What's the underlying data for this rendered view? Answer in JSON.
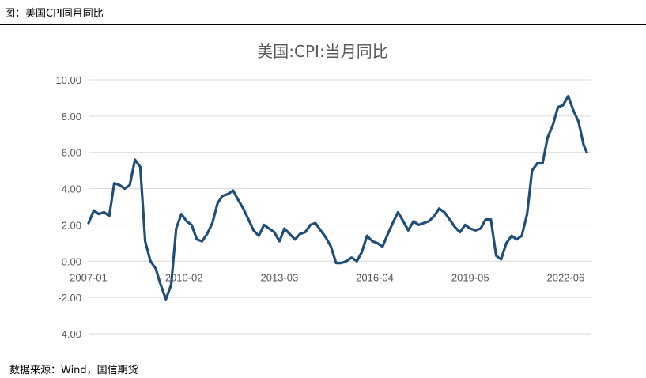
{
  "figure_label": "图：美国CPI同月同比",
  "source": "数据来源：Wind，国信期货",
  "chart_data": {
    "type": "line",
    "title": "美国:CPI:当月同比",
    "xlabel": "",
    "ylabel": "",
    "ylim": [
      -4,
      10
    ],
    "yticks": [
      "10.00",
      "8.00",
      "6.00",
      "4.00",
      "2.00",
      "0.00",
      "-2.00",
      "-4.00"
    ],
    "xticks": [
      "2007-01",
      "2010-02",
      "2013-03",
      "2016-04",
      "2019-05",
      "2022-06"
    ],
    "grid": "horizontal",
    "color": "#1f4e79",
    "series": [
      {
        "points": [
          [
            2007.0,
            2.1
          ],
          [
            2007.17,
            2.8
          ],
          [
            2007.33,
            2.6
          ],
          [
            2007.5,
            2.7
          ],
          [
            2007.67,
            2.5
          ],
          [
            2007.83,
            4.3
          ],
          [
            2008.0,
            4.2
          ],
          [
            2008.17,
            4.0
          ],
          [
            2008.33,
            4.2
          ],
          [
            2008.5,
            5.6
          ],
          [
            2008.67,
            5.2
          ],
          [
            2008.83,
            1.1
          ],
          [
            2009.0,
            0.0
          ],
          [
            2009.17,
            -0.4
          ],
          [
            2009.33,
            -1.3
          ],
          [
            2009.5,
            -2.1
          ],
          [
            2009.67,
            -1.3
          ],
          [
            2009.83,
            1.8
          ],
          [
            2010.0,
            2.6
          ],
          [
            2010.17,
            2.2
          ],
          [
            2010.33,
            2.0
          ],
          [
            2010.5,
            1.2
          ],
          [
            2010.67,
            1.1
          ],
          [
            2010.83,
            1.5
          ],
          [
            2011.0,
            2.1
          ],
          [
            2011.17,
            3.2
          ],
          [
            2011.33,
            3.6
          ],
          [
            2011.5,
            3.7
          ],
          [
            2011.67,
            3.9
          ],
          [
            2011.83,
            3.4
          ],
          [
            2012.0,
            2.9
          ],
          [
            2012.17,
            2.3
          ],
          [
            2012.33,
            1.7
          ],
          [
            2012.5,
            1.4
          ],
          [
            2012.67,
            2.0
          ],
          [
            2012.83,
            1.8
          ],
          [
            2013.0,
            1.6
          ],
          [
            2013.17,
            1.1
          ],
          [
            2013.33,
            1.8
          ],
          [
            2013.5,
            1.5
          ],
          [
            2013.67,
            1.2
          ],
          [
            2013.83,
            1.5
          ],
          [
            2014.0,
            1.6
          ],
          [
            2014.17,
            2.0
          ],
          [
            2014.33,
            2.1
          ],
          [
            2014.5,
            1.7
          ],
          [
            2014.67,
            1.3
          ],
          [
            2014.83,
            0.8
          ],
          [
            2015.0,
            -0.1
          ],
          [
            2015.17,
            -0.1
          ],
          [
            2015.33,
            0.0
          ],
          [
            2015.5,
            0.2
          ],
          [
            2015.67,
            0.0
          ],
          [
            2015.83,
            0.5
          ],
          [
            2016.0,
            1.4
          ],
          [
            2016.17,
            1.1
          ],
          [
            2016.33,
            1.0
          ],
          [
            2016.5,
            0.8
          ],
          [
            2016.67,
            1.5
          ],
          [
            2016.83,
            2.1
          ],
          [
            2017.0,
            2.7
          ],
          [
            2017.17,
            2.2
          ],
          [
            2017.33,
            1.7
          ],
          [
            2017.5,
            2.2
          ],
          [
            2017.67,
            2.0
          ],
          [
            2017.83,
            2.1
          ],
          [
            2018.0,
            2.2
          ],
          [
            2018.17,
            2.5
          ],
          [
            2018.33,
            2.9
          ],
          [
            2018.5,
            2.7
          ],
          [
            2018.67,
            2.3
          ],
          [
            2018.83,
            1.9
          ],
          [
            2019.0,
            1.6
          ],
          [
            2019.17,
            2.0
          ],
          [
            2019.33,
            1.8
          ],
          [
            2019.5,
            1.7
          ],
          [
            2019.67,
            1.8
          ],
          [
            2019.83,
            2.3
          ],
          [
            2020.0,
            2.3
          ],
          [
            2020.17,
            0.3
          ],
          [
            2020.33,
            0.1
          ],
          [
            2020.5,
            1.0
          ],
          [
            2020.67,
            1.4
          ],
          [
            2020.83,
            1.2
          ],
          [
            2021.0,
            1.4
          ],
          [
            2021.17,
            2.6
          ],
          [
            2021.33,
            5.0
          ],
          [
            2021.5,
            5.4
          ],
          [
            2021.67,
            5.4
          ],
          [
            2021.83,
            6.8
          ],
          [
            2022.0,
            7.5
          ],
          [
            2022.17,
            8.5
          ],
          [
            2022.33,
            8.6
          ],
          [
            2022.5,
            9.1
          ],
          [
            2022.67,
            8.3
          ],
          [
            2022.83,
            7.7
          ],
          [
            2023.0,
            6.4
          ],
          [
            2023.1,
            6.0
          ]
        ]
      }
    ]
  }
}
